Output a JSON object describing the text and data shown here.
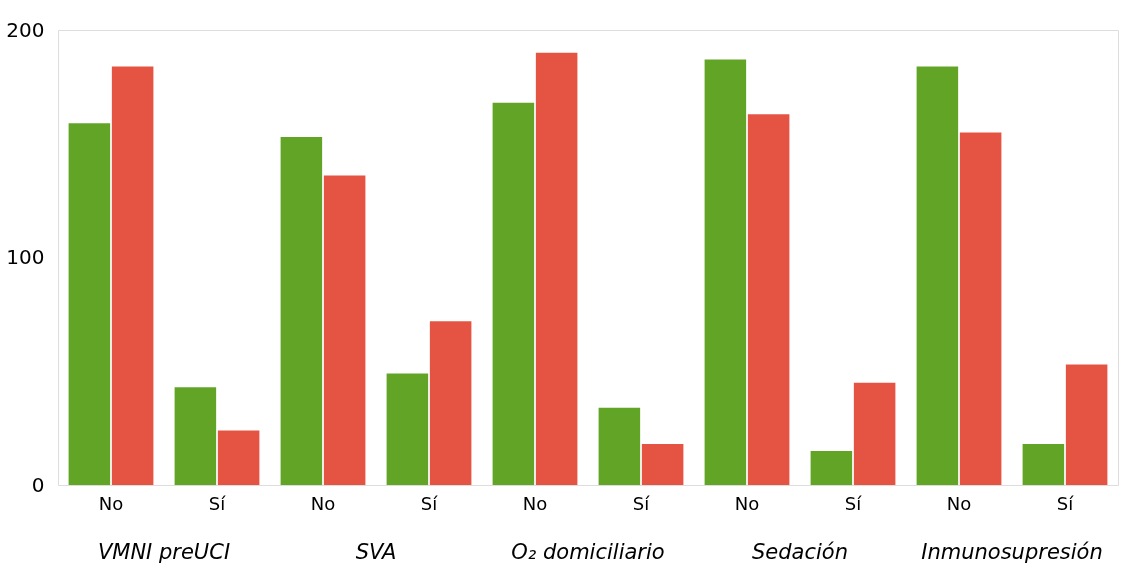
{
  "chart_data": {
    "type": "bar",
    "categories": [
      "No",
      "Sí",
      "No",
      "Sí",
      "No",
      "Sí",
      "No",
      "Sí",
      "No",
      "Sí"
    ],
    "series": [
      {
        "color": "#62a526",
        "values": [
          159,
          43,
          153,
          49,
          168,
          34,
          187,
          15,
          184,
          18
        ]
      },
      {
        "color": "#e55443",
        "values": [
          184,
          24,
          136,
          72,
          190,
          18,
          163,
          45,
          155,
          53
        ]
      }
    ],
    "ylim": [
      0,
      200
    ],
    "yticks": [
      0,
      100,
      200
    ],
    "grid": false,
    "legend": false,
    "annotations": [
      "VMNI preUCI",
      "SVA",
      "O₂ domiciliario",
      "Sedación",
      "Inmunosupresión"
    ]
  }
}
